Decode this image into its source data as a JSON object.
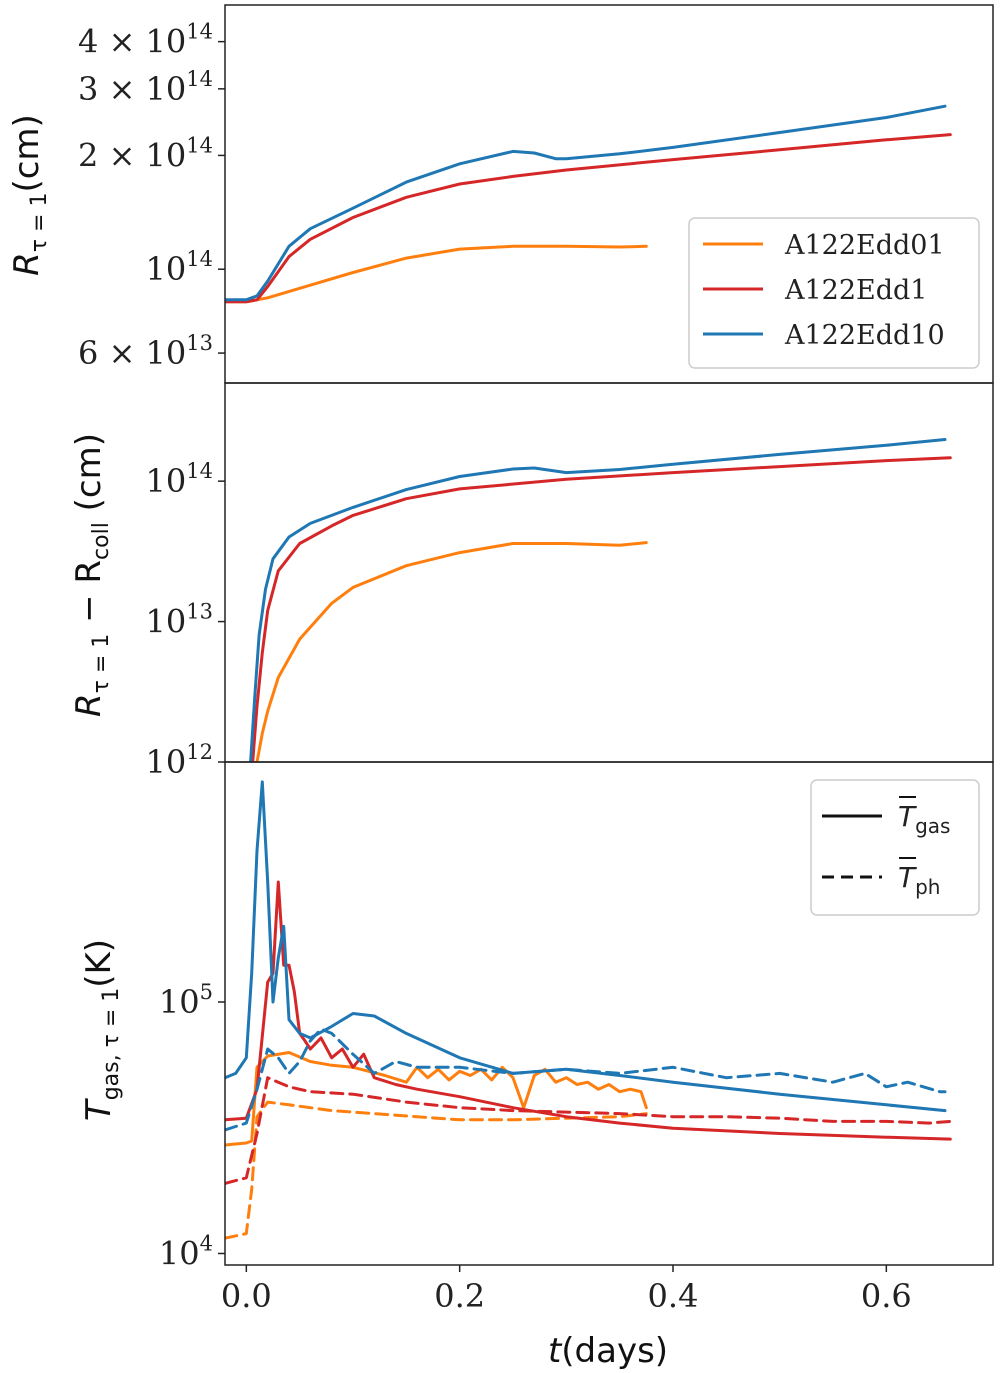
{
  "chart_data": [
    {
      "type": "line",
      "panel": "top",
      "ylabel_main": "R",
      "ylabel_sub": "τ = 1",
      "ylabel_unit": "(cm)",
      "yscale": "log",
      "ylim": [
        50000000000000,
        500000000000000
      ],
      "xlim": [
        -0.02,
        0.7
      ],
      "yticks": [
        {
          "value": 60000000000000,
          "label": "6 × 10",
          "exp": "13"
        },
        {
          "value": 100000000000000,
          "label": "10",
          "exp": "14"
        },
        {
          "value": 200000000000000,
          "label": "2 × 10",
          "exp": "14"
        },
        {
          "value": 300000000000000,
          "label": "3 × 10",
          "exp": "14"
        },
        {
          "value": 400000000000000,
          "label": "4 × 10",
          "exp": "14"
        }
      ],
      "legend": {
        "position": "right",
        "entries": [
          "A122Edd01",
          "A122Edd1",
          "A122Edd10"
        ]
      },
      "series": [
        {
          "name": "A122Edd01",
          "color": "#ff7f0e",
          "dash": "solid",
          "x": [
            -0.02,
            0.0,
            0.02,
            0.05,
            0.1,
            0.15,
            0.2,
            0.25,
            0.3,
            0.35,
            0.375
          ],
          "values": [
            82000000000000.0,
            82000000000000.0,
            84000000000000.0,
            89000000000000.0,
            98000000000000.0,
            107000000000000.0,
            113000000000000.0,
            115000000000000.0,
            115000000000000.0,
            114500000000000.0,
            115000000000000.0
          ]
        },
        {
          "name": "A122Edd1",
          "color": "#d62728",
          "dash": "solid",
          "x": [
            -0.02,
            0.0,
            0.01,
            0.02,
            0.04,
            0.06,
            0.1,
            0.15,
            0.2,
            0.25,
            0.3,
            0.4,
            0.5,
            0.6,
            0.66
          ],
          "values": [
            82000000000000.0,
            82000000000000.0,
            83000000000000.0,
            90000000000000.0,
            108000000000000.0,
            120000000000000.0,
            137000000000000.0,
            155000000000000.0,
            168000000000000.0,
            176000000000000.0,
            183000000000000.0,
            195000000000000.0,
            207000000000000.0,
            220000000000000.0,
            227000000000000.0
          ]
        },
        {
          "name": "A122Edd10",
          "color": "#1f77b4",
          "dash": "solid",
          "x": [
            -0.02,
            0.0,
            0.01,
            0.02,
            0.04,
            0.06,
            0.1,
            0.15,
            0.2,
            0.25,
            0.27,
            0.29,
            0.3,
            0.35,
            0.4,
            0.5,
            0.6,
            0.655
          ],
          "values": [
            83000000000000.0,
            83000000000000.0,
            85000000000000.0,
            93000000000000.0,
            115000000000000.0,
            128000000000000.0,
            145000000000000.0,
            170000000000000.0,
            190000000000000.0,
            205000000000000.0,
            203000000000000.0,
            196000000000000.0,
            196000000000000.0,
            202000000000000.0,
            210000000000000.0,
            230000000000000.0,
            252000000000000.0,
            270000000000000.0
          ]
        }
      ]
    },
    {
      "type": "line",
      "panel": "middle",
      "ylabel_main": "R",
      "ylabel_sub": "τ = 1",
      "ylabel_minus": " − R",
      "ylabel_sub2": "coll",
      "ylabel_unit": " (cm)",
      "yscale": "log",
      "ylim": [
        1000000000000,
        500000000000000
      ],
      "xlim": [
        -0.02,
        0.7
      ],
      "yticks": [
        {
          "value": 1000000000000,
          "label": "10",
          "exp": "12"
        },
        {
          "value": 10000000000000,
          "label": "10",
          "exp": "13"
        },
        {
          "value": 100000000000000,
          "label": "10",
          "exp": "14"
        }
      ],
      "series": [
        {
          "name": "A122Edd01",
          "color": "#ff7f0e",
          "dash": "solid",
          "x": [
            0.01,
            0.015,
            0.02,
            0.03,
            0.05,
            0.08,
            0.1,
            0.15,
            0.2,
            0.25,
            0.3,
            0.35,
            0.375
          ],
          "values": [
            1000000000000.0,
            1600000000000.0,
            2300000000000.0,
            4000000000000.0,
            7500000000000.0,
            13500000000000.0,
            17500000000000.0,
            25000000000000.0,
            31000000000000.0,
            36000000000000.0,
            36000000000000.0,
            35000000000000.0,
            36500000000000.0
          ]
        },
        {
          "name": "A122Edd1",
          "color": "#d62728",
          "dash": "solid",
          "x": [
            0.006,
            0.01,
            0.015,
            0.02,
            0.03,
            0.05,
            0.08,
            0.1,
            0.15,
            0.2,
            0.3,
            0.4,
            0.5,
            0.6,
            0.66
          ],
          "values": [
            1000000000000.0,
            2500000000000.0,
            6000000000000.0,
            12000000000000.0,
            23000000000000.0,
            36000000000000.0,
            48000000000000.0,
            57000000000000.0,
            75000000000000.0,
            88000000000000.0,
            103000000000000.0,
            115000000000000.0,
            127000000000000.0,
            140000000000000.0,
            147000000000000.0
          ]
        },
        {
          "name": "A122Edd10",
          "color": "#1f77b4",
          "dash": "solid",
          "x": [
            0.004,
            0.008,
            0.012,
            0.018,
            0.025,
            0.04,
            0.06,
            0.1,
            0.15,
            0.2,
            0.25,
            0.27,
            0.3,
            0.35,
            0.4,
            0.5,
            0.6,
            0.655
          ],
          "values": [
            1000000000000.0,
            3000000000000.0,
            8000000000000.0,
            17000000000000.0,
            28000000000000.0,
            40000000000000.0,
            50000000000000.0,
            65000000000000.0,
            87000000000000.0,
            108000000000000.0,
            122000000000000.0,
            124000000000000.0,
            115000000000000.0,
            121000000000000.0,
            132000000000000.0,
            155000000000000.0,
            180000000000000.0,
            198000000000000.0
          ]
        }
      ]
    },
    {
      "type": "line",
      "panel": "bottom",
      "ylabel_main": "T",
      "ylabel_sub": "gas, τ = 1",
      "ylabel_unit": "(K)",
      "yscale": "log",
      "ylim": [
        9000,
        900000
      ],
      "xlim": [
        -0.02,
        0.7
      ],
      "yticks": [
        {
          "value": 10000,
          "label": "10",
          "exp": "4"
        },
        {
          "value": 100000,
          "label": "10",
          "exp": "5"
        }
      ],
      "xticks": [
        {
          "value": 0.0,
          "label": "0.0"
        },
        {
          "value": 0.2,
          "label": "0.2"
        },
        {
          "value": 0.4,
          "label": "0.4"
        },
        {
          "value": 0.6,
          "label": "0.6"
        }
      ],
      "xlabel_main": "t",
      "xlabel_unit": "(days)",
      "legend": {
        "position": "top-right",
        "entries": [
          {
            "symbol": "T",
            "sub": "gas",
            "dash": "solid"
          },
          {
            "symbol": "T",
            "sub": "ph",
            "dash": "dashed"
          }
        ]
      },
      "series": [
        {
          "name": "A122Edd01 gas",
          "color": "#ff7f0e",
          "dash": "solid",
          "x": [
            -0.02,
            0.0,
            0.005,
            0.01,
            0.02,
            0.04,
            0.06,
            0.08,
            0.1,
            0.13,
            0.15,
            0.16,
            0.17,
            0.18,
            0.19,
            0.2,
            0.21,
            0.22,
            0.23,
            0.24,
            0.25,
            0.26,
            0.27,
            0.28,
            0.29,
            0.3,
            0.31,
            0.32,
            0.33,
            0.34,
            0.35,
            0.36,
            0.37,
            0.375
          ],
          "values": [
            27000,
            27500,
            28000,
            55000,
            61000,
            63000,
            58000,
            56000,
            55000,
            51000,
            48000,
            55000,
            50000,
            54000,
            49000,
            53000,
            51000,
            54000,
            49000,
            55000,
            50000,
            38000,
            51000,
            54000,
            48000,
            50000,
            47000,
            48000,
            45000,
            47000,
            44000,
            45000,
            44000,
            38000
          ]
        },
        {
          "name": "A122Edd01 ph",
          "color": "#ff7f0e",
          "dash": "dashed",
          "x": [
            -0.02,
            0.0,
            0.005,
            0.01,
            0.02,
            0.04,
            0.08,
            0.12,
            0.16,
            0.2,
            0.25,
            0.3,
            0.35,
            0.375
          ],
          "values": [
            11500,
            12000,
            18000,
            35000,
            40000,
            39000,
            37000,
            36000,
            35000,
            34000,
            34000,
            34500,
            35000,
            36000
          ]
        },
        {
          "name": "A122Edd1 gas",
          "color": "#d62728",
          "dash": "solid",
          "x": [
            -0.02,
            0.0,
            0.01,
            0.02,
            0.025,
            0.03,
            0.035,
            0.04,
            0.045,
            0.05,
            0.055,
            0.06,
            0.07,
            0.08,
            0.09,
            0.1,
            0.11,
            0.12,
            0.14,
            0.16,
            0.2,
            0.25,
            0.3,
            0.35,
            0.4,
            0.5,
            0.6,
            0.66
          ],
          "values": [
            34000,
            34500,
            45000,
            120000,
            130000,
            300000,
            140000,
            140000,
            110000,
            75000,
            70000,
            65000,
            72000,
            60000,
            65000,
            55000,
            62000,
            50000,
            47000,
            45000,
            42000,
            38000,
            35000,
            33000,
            31500,
            30000,
            29000,
            28500
          ]
        },
        {
          "name": "A122Edd1 ph",
          "color": "#d62728",
          "dash": "dashed",
          "x": [
            -0.02,
            0.0,
            0.01,
            0.02,
            0.04,
            0.06,
            0.1,
            0.15,
            0.2,
            0.25,
            0.3,
            0.35,
            0.4,
            0.45,
            0.5,
            0.55,
            0.6,
            0.64,
            0.66
          ],
          "values": [
            19000,
            20000,
            30000,
            50000,
            46000,
            44000,
            43000,
            40000,
            38000,
            37000,
            36500,
            36000,
            35000,
            35000,
            34500,
            33500,
            33500,
            33000,
            33500
          ]
        },
        {
          "name": "A122Edd10 gas",
          "color": "#1f77b4",
          "dash": "solid",
          "x": [
            -0.02,
            -0.01,
            0.0,
            0.005,
            0.01,
            0.015,
            0.02,
            0.025,
            0.03,
            0.035,
            0.04,
            0.05,
            0.06,
            0.08,
            0.1,
            0.12,
            0.15,
            0.2,
            0.25,
            0.3,
            0.35,
            0.4,
            0.5,
            0.6,
            0.655
          ],
          "values": [
            50000,
            52000,
            60000,
            130000,
            400000,
            750000,
            300000,
            100000,
            150000,
            200000,
            85000,
            75000,
            72000,
            80000,
            90000,
            88000,
            75000,
            60000,
            52000,
            54000,
            51000,
            48000,
            43000,
            39000,
            37000
          ]
        },
        {
          "name": "A122Edd10 ph",
          "color": "#1f77b4",
          "dash": "dashed",
          "x": [
            -0.02,
            0.0,
            0.01,
            0.02,
            0.03,
            0.04,
            0.05,
            0.06,
            0.07,
            0.08,
            0.1,
            0.12,
            0.14,
            0.16,
            0.2,
            0.25,
            0.3,
            0.35,
            0.4,
            0.45,
            0.5,
            0.55,
            0.58,
            0.6,
            0.62,
            0.65,
            0.655
          ],
          "values": [
            31000,
            33000,
            45000,
            65000,
            60000,
            52000,
            58000,
            70000,
            78000,
            75000,
            62000,
            52000,
            58000,
            55000,
            55000,
            52000,
            54000,
            52000,
            55000,
            50000,
            52000,
            48000,
            52000,
            46000,
            48000,
            44000,
            44000
          ]
        }
      ]
    }
  ]
}
